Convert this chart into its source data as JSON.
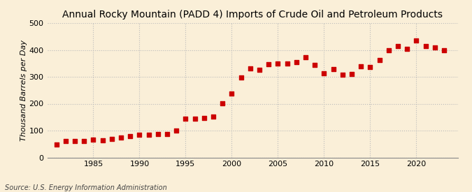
{
  "title": "Annual Rocky Mountain (PADD 4) Imports of Crude Oil and Petroleum Products",
  "ylabel": "Thousand Barrels per Day",
  "source": "Source: U.S. Energy Information Administration",
  "background_color": "#faefd8",
  "marker_color": "#cc0000",
  "years": [
    1981,
    1982,
    1983,
    1984,
    1985,
    1986,
    1987,
    1988,
    1989,
    1990,
    1991,
    1992,
    1993,
    1994,
    1995,
    1996,
    1997,
    1998,
    1999,
    2000,
    2001,
    2002,
    2003,
    2004,
    2005,
    2006,
    2007,
    2008,
    2009,
    2010,
    2011,
    2012,
    2013,
    2014,
    2015,
    2016,
    2017,
    2018,
    2019,
    2020,
    2021,
    2022,
    2023
  ],
  "values": [
    48,
    60,
    62,
    62,
    65,
    63,
    70,
    75,
    80,
    84,
    84,
    88,
    88,
    100,
    145,
    143,
    148,
    153,
    202,
    238,
    298,
    330,
    327,
    348,
    350,
    349,
    355,
    372,
    345,
    313,
    328,
    309,
    310,
    340,
    337,
    363,
    400,
    413,
    403,
    435,
    413,
    409,
    400
  ],
  "ylim": [
    0,
    500
  ],
  "yticks": [
    0,
    100,
    200,
    300,
    400,
    500
  ],
  "xlim": [
    1980,
    2024.5
  ],
  "xticks": [
    1985,
    1990,
    1995,
    2000,
    2005,
    2010,
    2015,
    2020
  ],
  "grid_color": "#bbbbbb",
  "title_fontsize": 10,
  "label_fontsize": 8,
  "tick_fontsize": 8,
  "source_fontsize": 7
}
